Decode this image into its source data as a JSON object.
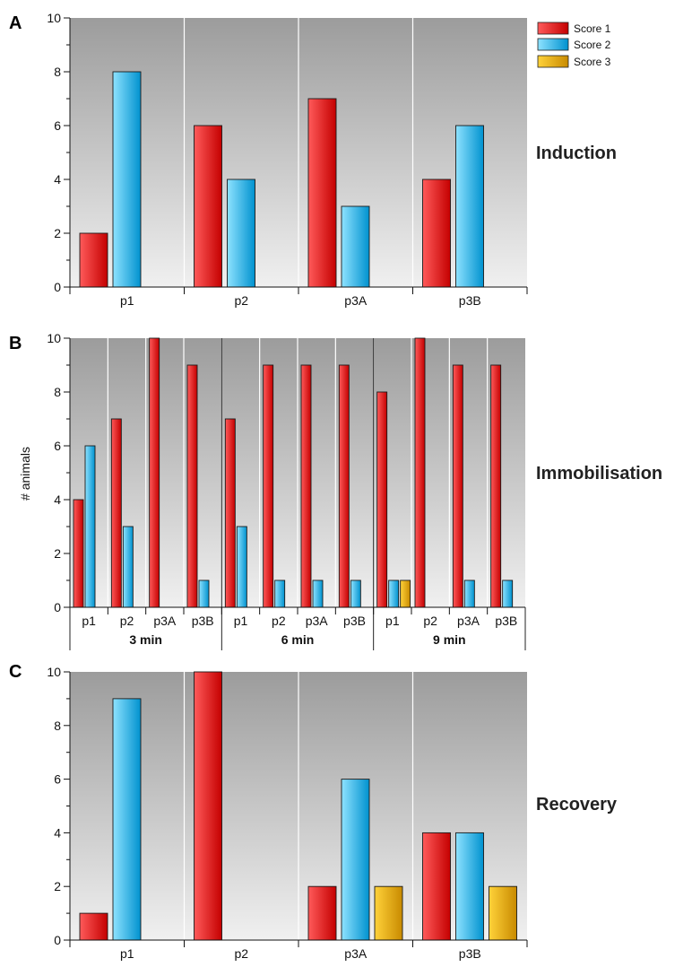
{
  "colors": {
    "score1_light": "#ff5a5a",
    "score1_dark": "#c40000",
    "score2_light": "#8ee2ff",
    "score2_dark": "#0092cf",
    "score3_light": "#ffd23a",
    "score3_dark": "#c88a00",
    "plot_top": "#9c9c9c",
    "plot_bottom": "#f0f0f0"
  },
  "legend": [
    "Score 1",
    "Score 2",
    "Score 3"
  ],
  "chart_data": [
    {
      "type": "bar",
      "panel_letter": "A",
      "side_label": "Induction",
      "ylim": [
        0,
        10
      ],
      "yticks": [
        "0",
        "2",
        "4",
        "6",
        "8",
        "10"
      ],
      "categories": [
        "p1",
        "p2",
        "p3A",
        "p3B"
      ],
      "series": [
        {
          "name": "Score 1",
          "values": [
            2,
            6,
            7,
            4
          ]
        },
        {
          "name": "Score 2",
          "values": [
            8,
            4,
            3,
            6
          ]
        },
        {
          "name": "Score 3",
          "values": [
            0,
            0,
            0,
            0
          ]
        }
      ]
    },
    {
      "type": "bar",
      "panel_letter": "B",
      "side_label": "Immobilisation",
      "ylabel": "# animals",
      "ylim": [
        0,
        10
      ],
      "yticks": [
        "0",
        "2",
        "4",
        "6",
        "8",
        "10"
      ],
      "categories": [
        "p1",
        "p2",
        "p3A",
        "p3B",
        "p1",
        "p2",
        "p3A",
        "p3B",
        "p1",
        "p2",
        "p3A",
        "p3B"
      ],
      "groups": [
        {
          "label": "3 min",
          "count": 4
        },
        {
          "label": "6 min",
          "count": 4
        },
        {
          "label": "9 min",
          "count": 4
        }
      ],
      "series": [
        {
          "name": "Score 1",
          "values": [
            4,
            7,
            10,
            9,
            7,
            9,
            9,
            9,
            8,
            10,
            9,
            9
          ]
        },
        {
          "name": "Score 2",
          "values": [
            6,
            3,
            0,
            1,
            3,
            1,
            1,
            1,
            1,
            0,
            1,
            1
          ]
        },
        {
          "name": "Score 3",
          "values": [
            0,
            0,
            0,
            0,
            0,
            0,
            0,
            0,
            1,
            0,
            0,
            0
          ]
        }
      ]
    },
    {
      "type": "bar",
      "panel_letter": "C",
      "side_label": "Recovery",
      "ylim": [
        0,
        10
      ],
      "yticks": [
        "0",
        "2",
        "4",
        "6",
        "8",
        "10"
      ],
      "categories": [
        "p1",
        "p2",
        "p3A",
        "p3B"
      ],
      "series": [
        {
          "name": "Score 1",
          "values": [
            1,
            10,
            2,
            4
          ]
        },
        {
          "name": "Score 2",
          "values": [
            9,
            0,
            6,
            4
          ]
        },
        {
          "name": "Score 3",
          "values": [
            0,
            0,
            2,
            2
          ]
        }
      ]
    }
  ]
}
